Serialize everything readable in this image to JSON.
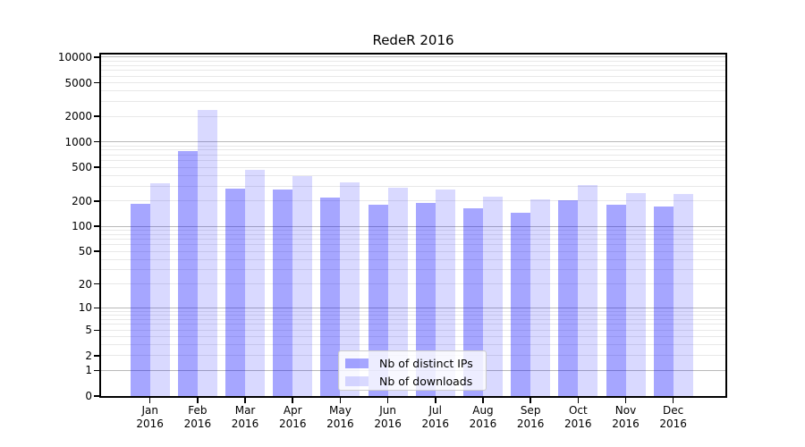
{
  "title": "RedeR 2016",
  "colors": {
    "bar_distinct_ips": "rgba(0,0,255,0.35)",
    "bar_downloads": "rgba(0,0,255,0.15)",
    "grid_major": "#b9b9b9",
    "grid_minor": "#e8e8e8",
    "axis": "#000000",
    "background": "#ffffff"
  },
  "chart_data": {
    "type": "bar",
    "title": "RedeR 2016",
    "categories": [
      "Jan 2016",
      "Feb 2016",
      "Mar 2016",
      "Apr 2016",
      "May 2016",
      "Jun 2016",
      "Jul 2016",
      "Aug 2016",
      "Sep 2016",
      "Oct 2016",
      "Nov 2016",
      "Dec 2016"
    ],
    "months": [
      "Jan",
      "Feb",
      "Mar",
      "Apr",
      "May",
      "Jun",
      "Jul",
      "Aug",
      "Sep",
      "Oct",
      "Nov",
      "Dec"
    ],
    "year": "2016",
    "series": [
      {
        "name": "Nb of distinct IPs",
        "color": "rgba(0,0,255,0.35)",
        "values": [
          185,
          780,
          280,
          273,
          220,
          180,
          190,
          165,
          145,
          205,
          180,
          172
        ]
      },
      {
        "name": "Nb of downloads",
        "color": "rgba(0,0,255,0.15)",
        "values": [
          325,
          2400,
          465,
          395,
          330,
          287,
          273,
          225,
          210,
          310,
          248,
          242
        ]
      }
    ],
    "xlabel": "",
    "ylabel": "",
    "yscale": "log1p",
    "ylim": [
      0,
      10000
    ],
    "yticks": [
      0,
      1,
      2,
      5,
      10,
      20,
      50,
      100,
      200,
      500,
      1000,
      2000,
      5000,
      10000
    ],
    "grid": true,
    "legend_position": "lower center"
  }
}
